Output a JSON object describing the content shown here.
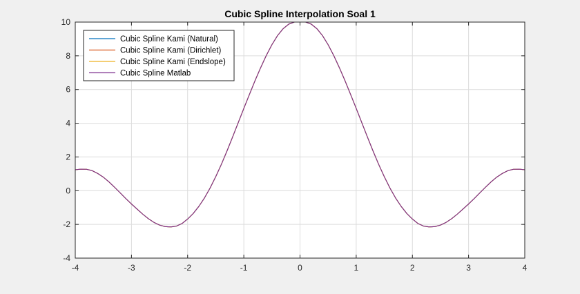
{
  "chart_data": {
    "type": "line",
    "title": "Cubic Spline Interpolation Soal 1",
    "xlabel": "",
    "ylabel": "",
    "xlim": [
      -4,
      4
    ],
    "ylim": [
      -4,
      10
    ],
    "xticks": [
      -4,
      -3,
      -2,
      -1,
      0,
      1,
      2,
      3,
      4
    ],
    "yticks": [
      -4,
      -2,
      0,
      2,
      4,
      6,
      8,
      10
    ],
    "grid": true,
    "legend_position": "top-left",
    "x": [
      -4,
      -3.9,
      -3.8,
      -3.7,
      -3.6,
      -3.5,
      -3.4,
      -3.3,
      -3.2,
      -3.1,
      -3,
      -2.9,
      -2.8,
      -2.7,
      -2.6,
      -2.5,
      -2.4,
      -2.3,
      -2.2,
      -2.1,
      -2,
      -1.9,
      -1.8,
      -1.7,
      -1.6,
      -1.5,
      -1.4,
      -1.3,
      -1.2,
      -1.1,
      -1,
      -0.9,
      -0.8,
      -0.7,
      -0.6,
      -0.5,
      -0.4,
      -0.3,
      -0.2,
      -0.1,
      0,
      0.1,
      0.2,
      0.3,
      0.4,
      0.5,
      0.6,
      0.7,
      0.8,
      0.9,
      1,
      1.1,
      1.2,
      1.3,
      1.4,
      1.5,
      1.6,
      1.7,
      1.8,
      1.9,
      2,
      2.1,
      2.2,
      2.3,
      2.4,
      2.5,
      2.6,
      2.7,
      2.8,
      2.9,
      3,
      3.1,
      3.2,
      3.3,
      3.4,
      3.5,
      3.6,
      3.7,
      3.8,
      3.9,
      4
    ],
    "series": [
      {
        "name": "Cubic Spline Kami (Natural)",
        "color": "#0072bd",
        "y": [
          1.24,
          1.28,
          1.27,
          1.19,
          1.02,
          0.8,
          0.52,
          0.2,
          -0.13,
          -0.47,
          -0.79,
          -1.09,
          -1.39,
          -1.66,
          -1.88,
          -2.04,
          -2.13,
          -2.15,
          -2.1,
          -1.95,
          -1.68,
          -1.35,
          -0.93,
          -0.43,
          0.16,
          0.83,
          1.56,
          2.35,
          3.18,
          4.03,
          4.88,
          5.71,
          6.53,
          7.3,
          8.02,
          8.66,
          9.2,
          9.61,
          9.88,
          10.0,
          10.0,
          10.0,
          9.88,
          9.61,
          9.2,
          8.66,
          8.02,
          7.3,
          6.53,
          5.71,
          4.88,
          4.03,
          3.18,
          2.35,
          1.56,
          0.83,
          0.16,
          -0.43,
          -0.93,
          -1.35,
          -1.68,
          -1.95,
          -2.1,
          -2.15,
          -2.13,
          -2.04,
          -1.88,
          -1.66,
          -1.39,
          -1.09,
          -0.79,
          -0.47,
          -0.13,
          0.2,
          0.52,
          0.8,
          1.02,
          1.19,
          1.27,
          1.28,
          1.24
        ]
      },
      {
        "name": "Cubic Spline Kami (Dirichlet)",
        "color": "#d95319",
        "y": [
          1.24,
          1.28,
          1.27,
          1.19,
          1.02,
          0.8,
          0.52,
          0.2,
          -0.13,
          -0.47,
          -0.79,
          -1.09,
          -1.39,
          -1.66,
          -1.88,
          -2.04,
          -2.13,
          -2.15,
          -2.1,
          -1.95,
          -1.68,
          -1.35,
          -0.93,
          -0.43,
          0.16,
          0.83,
          1.56,
          2.35,
          3.18,
          4.03,
          4.88,
          5.71,
          6.53,
          7.3,
          8.02,
          8.66,
          9.2,
          9.61,
          9.88,
          10.0,
          10.0,
          10.0,
          9.88,
          9.61,
          9.2,
          8.66,
          8.02,
          7.3,
          6.53,
          5.71,
          4.88,
          4.03,
          3.18,
          2.35,
          1.56,
          0.83,
          0.16,
          -0.43,
          -0.93,
          -1.35,
          -1.68,
          -1.95,
          -2.1,
          -2.15,
          -2.13,
          -2.04,
          -1.88,
          -1.66,
          -1.39,
          -1.09,
          -0.79,
          -0.47,
          -0.13,
          0.2,
          0.52,
          0.8,
          1.02,
          1.19,
          1.27,
          1.28,
          1.24
        ]
      },
      {
        "name": "Cubic Spline Kami (Endslope)",
        "color": "#edb120",
        "y": [
          1.24,
          1.28,
          1.27,
          1.19,
          1.02,
          0.8,
          0.52,
          0.2,
          -0.13,
          -0.47,
          -0.79,
          -1.09,
          -1.39,
          -1.66,
          -1.88,
          -2.04,
          -2.13,
          -2.15,
          -2.1,
          -1.95,
          -1.68,
          -1.35,
          -0.93,
          -0.43,
          0.16,
          0.83,
          1.56,
          2.35,
          3.18,
          4.03,
          4.88,
          5.71,
          6.53,
          7.3,
          8.02,
          8.66,
          9.2,
          9.61,
          9.88,
          10.0,
          10.0,
          10.0,
          9.88,
          9.61,
          9.2,
          8.66,
          8.02,
          7.3,
          6.53,
          5.71,
          4.88,
          4.03,
          3.18,
          2.35,
          1.56,
          0.83,
          0.16,
          -0.43,
          -0.93,
          -1.35,
          -1.68,
          -1.95,
          -2.1,
          -2.15,
          -2.13,
          -2.04,
          -1.88,
          -1.66,
          -1.39,
          -1.09,
          -0.79,
          -0.47,
          -0.13,
          0.2,
          0.52,
          0.8,
          1.02,
          1.19,
          1.27,
          1.28,
          1.24
        ]
      },
      {
        "name": "Cubic Spline Matlab",
        "color": "#7e2f8e",
        "y": [
          1.24,
          1.28,
          1.27,
          1.19,
          1.02,
          0.8,
          0.52,
          0.2,
          -0.13,
          -0.47,
          -0.79,
          -1.09,
          -1.39,
          -1.66,
          -1.88,
          -2.04,
          -2.13,
          -2.15,
          -2.1,
          -1.95,
          -1.68,
          -1.35,
          -0.93,
          -0.43,
          0.16,
          0.83,
          1.56,
          2.35,
          3.18,
          4.03,
          4.88,
          5.71,
          6.53,
          7.3,
          8.02,
          8.66,
          9.2,
          9.61,
          9.88,
          10.0,
          10.0,
          10.0,
          9.88,
          9.61,
          9.2,
          8.66,
          8.02,
          7.3,
          6.53,
          5.71,
          4.88,
          4.03,
          3.18,
          2.35,
          1.56,
          0.83,
          0.16,
          -0.43,
          -0.93,
          -1.35,
          -1.68,
          -1.95,
          -2.1,
          -2.15,
          -2.13,
          -2.04,
          -1.88,
          -1.66,
          -1.39,
          -1.09,
          -0.79,
          -0.47,
          -0.13,
          0.2,
          0.52,
          0.8,
          1.02,
          1.19,
          1.27,
          1.28,
          1.24
        ]
      }
    ]
  }
}
